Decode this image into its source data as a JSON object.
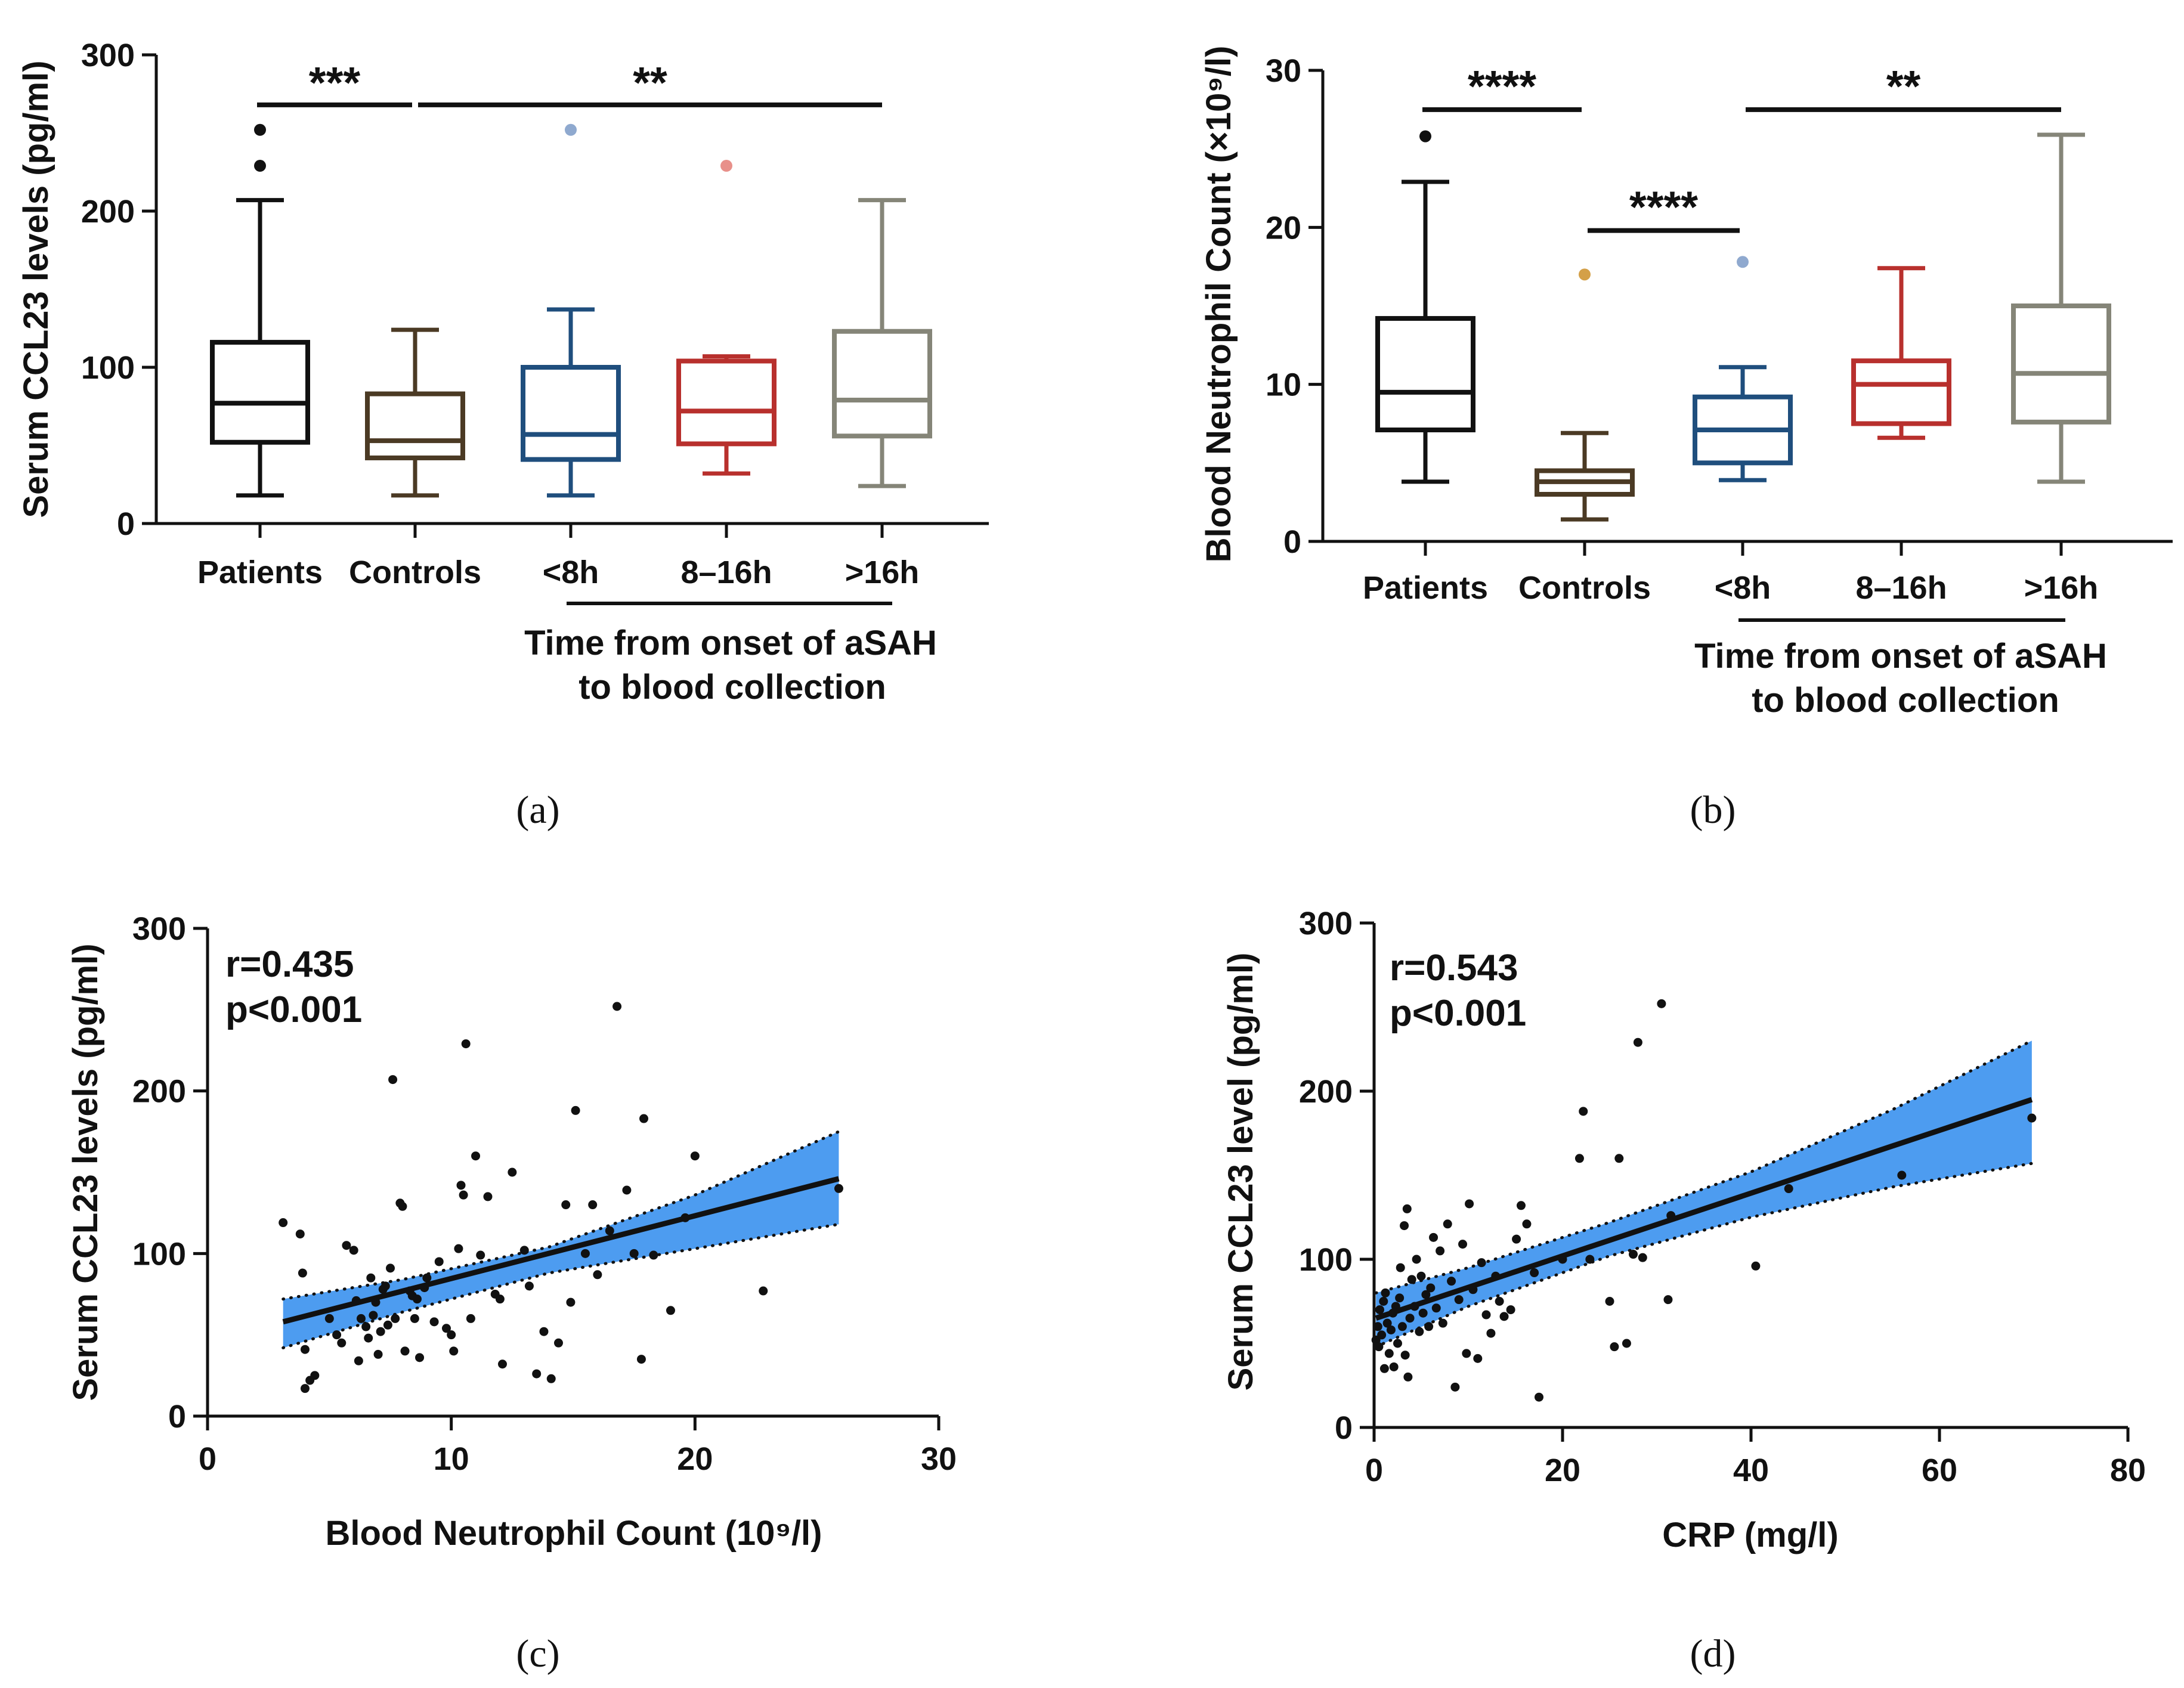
{
  "chart_data": [
    {
      "id": "a",
      "type": "box",
      "panel_label": "(a)",
      "ylabel": "Serum CCL23 levels (pg/ml)",
      "ylim": [
        0,
        300
      ],
      "yticks": [
        0,
        100,
        200,
        300
      ],
      "categories": [
        "Patients",
        "Controls",
        "<8h",
        "8–16h",
        ">16h"
      ],
      "group_caption": [
        "Time from onset of aSAH",
        "to blood collection"
      ],
      "colors": [
        "#111111",
        "#4b3a24",
        "#1f4e7d",
        "#b8302d",
        "#858578"
      ],
      "outlier_colors": [
        "#111111",
        "#111111",
        "#8fa9cf",
        "#e8908a",
        "#858578"
      ],
      "boxes": [
        {
          "min": 18,
          "q1": 52,
          "median": 77,
          "q3": 116,
          "max": 207,
          "outliers": [
            229,
            252
          ]
        },
        {
          "min": 18,
          "q1": 42,
          "median": 53,
          "q3": 83,
          "max": 124,
          "outliers": []
        },
        {
          "min": 18,
          "q1": 41,
          "median": 57,
          "q3": 100,
          "max": 137,
          "outliers": [
            252
          ]
        },
        {
          "min": 32,
          "q1": 51,
          "median": 72,
          "q3": 104,
          "max": 107,
          "outliers": [
            229
          ]
        },
        {
          "min": 24,
          "q1": 56,
          "median": 79,
          "q3": 123,
          "max": 207,
          "outliers": []
        }
      ],
      "significance": [
        {
          "from": 0,
          "to": 1,
          "label": "***",
          "y": 268
        },
        {
          "from": 1,
          "to": 4,
          "label": "**",
          "y": 268
        }
      ]
    },
    {
      "id": "b",
      "type": "box",
      "panel_label": "(b)",
      "ylabel": "Blood Neutrophil Count (×10⁹/l)",
      "ylim": [
        0,
        30
      ],
      "yticks": [
        0,
        10,
        20,
        30
      ],
      "categories": [
        "Patients",
        "Controls",
        "<8h",
        "8–16h",
        ">16h"
      ],
      "group_caption": [
        "Time from onset of aSAH",
        "to blood collection"
      ],
      "colors": [
        "#111111",
        "#4b3a24",
        "#1f4e7d",
        "#b8302d",
        "#858578"
      ],
      "outlier_colors": [
        "#111111",
        "#d4a048",
        "#8fa9cf",
        "#e8908a",
        "#858578"
      ],
      "boxes": [
        {
          "min": 3.8,
          "q1": 7.1,
          "median": 9.5,
          "q3": 14.2,
          "max": 22.9,
          "outliers": [
            25.8
          ]
        },
        {
          "min": 1.4,
          "q1": 3.0,
          "median": 3.8,
          "q3": 4.5,
          "max": 6.9,
          "outliers": [
            17.0
          ]
        },
        {
          "min": 3.9,
          "q1": 5.0,
          "median": 7.1,
          "q3": 9.2,
          "max": 11.1,
          "outliers": [
            17.8
          ]
        },
        {
          "min": 6.6,
          "q1": 7.5,
          "median": 10.0,
          "q3": 11.5,
          "max": 17.4,
          "outliers": []
        },
        {
          "min": 3.8,
          "q1": 7.6,
          "median": 10.7,
          "q3": 15.0,
          "max": 25.9,
          "outliers": []
        }
      ],
      "significance": [
        {
          "from": 0,
          "to": 1,
          "label": "****",
          "y": 27.5
        },
        {
          "from": 1,
          "to": 2,
          "label": "****",
          "y": 19.8
        },
        {
          "from": 2,
          "to": 4,
          "label": "**",
          "y": 27.5
        }
      ]
    },
    {
      "id": "c",
      "type": "scatter",
      "panel_label": "(c)",
      "title": "",
      "xlabel": "Blood Neutrophil Count (10⁹/l)",
      "ylabel": "Serum CCL23 levels (pg/ml)",
      "xlim": [
        0,
        30
      ],
      "ylim": [
        0,
        300
      ],
      "xticks": [
        0,
        10,
        20,
        30
      ],
      "yticks": [
        0,
        100,
        200,
        300
      ],
      "annotation": [
        "r=0.435",
        "p<0.001"
      ],
      "fit": {
        "x0": 3.1,
        "y0": 58,
        "x1": 25.9,
        "y1": 146
      },
      "band_upper": [
        [
          3.1,
          72
        ],
        [
          8.0,
          84
        ],
        [
          14.0,
          104
        ],
        [
          20.0,
          136
        ],
        [
          25.9,
          175
        ]
      ],
      "band_lower": [
        [
          3.1,
          42
        ],
        [
          8.0,
          64
        ],
        [
          14.0,
          88
        ],
        [
          20.0,
          103
        ],
        [
          25.9,
          118
        ]
      ],
      "band_color": "#4d9cf0",
      "points": [
        [
          3.1,
          119
        ],
        [
          3.8,
          112
        ],
        [
          3.9,
          88
        ],
        [
          4.0,
          17
        ],
        [
          4.2,
          22
        ],
        [
          4.4,
          25
        ],
        [
          4.0,
          41
        ],
        [
          5.0,
          60
        ],
        [
          5.3,
          50
        ],
        [
          5.5,
          45
        ],
        [
          5.7,
          105
        ],
        [
          6.0,
          102
        ],
        [
          6.1,
          71
        ],
        [
          6.2,
          34
        ],
        [
          6.3,
          60
        ],
        [
          6.5,
          55
        ],
        [
          6.6,
          48
        ],
        [
          6.7,
          85
        ],
        [
          6.8,
          62
        ],
        [
          6.9,
          70
        ],
        [
          7.0,
          38
        ],
        [
          7.1,
          52
        ],
        [
          7.2,
          78
        ],
        [
          7.3,
          80
        ],
        [
          7.4,
          56
        ],
        [
          7.5,
          91
        ],
        [
          7.6,
          207
        ],
        [
          7.7,
          60
        ],
        [
          7.9,
          131
        ],
        [
          8.0,
          129
        ],
        [
          8.1,
          40
        ],
        [
          8.3,
          77
        ],
        [
          8.4,
          74
        ],
        [
          8.5,
          60
        ],
        [
          8.6,
          72
        ],
        [
          8.7,
          36
        ],
        [
          8.9,
          79
        ],
        [
          9.0,
          85
        ],
        [
          9.3,
          58
        ],
        [
          9.5,
          95
        ],
        [
          9.8,
          54
        ],
        [
          10.0,
          50
        ],
        [
          10.1,
          40
        ],
        [
          10.3,
          103
        ],
        [
          10.4,
          142
        ],
        [
          10.5,
          136
        ],
        [
          10.6,
          229
        ],
        [
          10.8,
          60
        ],
        [
          11.0,
          160
        ],
        [
          11.2,
          99
        ],
        [
          11.5,
          135
        ],
        [
          11.8,
          75
        ],
        [
          12.0,
          72
        ],
        [
          12.1,
          32
        ],
        [
          12.5,
          150
        ],
        [
          13.0,
          102
        ],
        [
          13.2,
          80
        ],
        [
          13.5,
          26
        ],
        [
          13.8,
          52
        ],
        [
          14.1,
          23
        ],
        [
          14.4,
          45
        ],
        [
          14.7,
          130
        ],
        [
          14.9,
          70
        ],
        [
          15.1,
          188
        ],
        [
          15.5,
          100
        ],
        [
          15.8,
          130
        ],
        [
          16.0,
          87
        ],
        [
          16.5,
          114
        ],
        [
          16.8,
          252
        ],
        [
          17.2,
          139
        ],
        [
          17.5,
          100
        ],
        [
          17.8,
          35
        ],
        [
          17.9,
          183
        ],
        [
          18.3,
          99
        ],
        [
          19.0,
          65
        ],
        [
          19.6,
          122
        ],
        [
          20.0,
          160
        ],
        [
          22.8,
          77
        ],
        [
          25.9,
          140
        ]
      ]
    },
    {
      "id": "d",
      "type": "scatter",
      "panel_label": "(d)",
      "title": "",
      "xlabel": "CRP  (mg/l)",
      "ylabel": "Serum CCL23 level (pg/ml)",
      "xlim": [
        0,
        80
      ],
      "ylim": [
        0,
        300
      ],
      "xticks": [
        0,
        20,
        40,
        60,
        80
      ],
      "yticks": [
        0,
        100,
        200,
        300
      ],
      "annotation": [
        "r=0.543",
        "p<0.001"
      ],
      "fit": {
        "x0": 0.2,
        "y0": 65,
        "x1": 69.8,
        "y1": 195
      },
      "band_upper": [
        [
          0.2,
          80
        ],
        [
          10.0,
          95
        ],
        [
          25.0,
          122
        ],
        [
          40.0,
          152
        ],
        [
          55.0,
          189
        ],
        [
          69.8,
          230
        ]
      ],
      "band_lower": [
        [
          0.2,
          48
        ],
        [
          10.0,
          72
        ],
        [
          25.0,
          102
        ],
        [
          40.0,
          125
        ],
        [
          55.0,
          143
        ],
        [
          69.8,
          157
        ]
      ],
      "band_color": "#4d9cf0",
      "points": [
        [
          0.2,
          52
        ],
        [
          0.4,
          60
        ],
        [
          0.5,
          48
        ],
        [
          0.6,
          70
        ],
        [
          0.8,
          55
        ],
        [
          1.0,
          75
        ],
        [
          1.1,
          35
        ],
        [
          1.2,
          80
        ],
        [
          1.4,
          62
        ],
        [
          1.6,
          44
        ],
        [
          1.8,
          58
        ],
        [
          2.0,
          68
        ],
        [
          2.1,
          36
        ],
        [
          2.3,
          72
        ],
        [
          2.5,
          50
        ],
        [
          2.7,
          77
        ],
        [
          2.8,
          95
        ],
        [
          3.0,
          60
        ],
        [
          3.2,
          120
        ],
        [
          3.3,
          43
        ],
        [
          3.5,
          130
        ],
        [
          3.6,
          30
        ],
        [
          3.8,
          65
        ],
        [
          4.0,
          88
        ],
        [
          4.3,
          72
        ],
        [
          4.5,
          100
        ],
        [
          4.8,
          57
        ],
        [
          5.0,
          90
        ],
        [
          5.2,
          68
        ],
        [
          5.5,
          79
        ],
        [
          5.8,
          60
        ],
        [
          6.0,
          83
        ],
        [
          6.3,
          113
        ],
        [
          6.6,
          71
        ],
        [
          7.0,
          105
        ],
        [
          7.3,
          62
        ],
        [
          7.8,
          121
        ],
        [
          8.2,
          87
        ],
        [
          8.6,
          24
        ],
        [
          9.0,
          76
        ],
        [
          9.4,
          109
        ],
        [
          9.8,
          44
        ],
        [
          10.1,
          133
        ],
        [
          10.5,
          82
        ],
        [
          11.0,
          41
        ],
        [
          11.4,
          98
        ],
        [
          11.9,
          67
        ],
        [
          12.4,
          56
        ],
        [
          12.9,
          90
        ],
        [
          13.3,
          75
        ],
        [
          13.8,
          66
        ],
        [
          14.5,
          70
        ],
        [
          15.1,
          112
        ],
        [
          15.6,
          132
        ],
        [
          16.2,
          121
        ],
        [
          17.0,
          92
        ],
        [
          17.5,
          18
        ],
        [
          20.0,
          100
        ],
        [
          21.8,
          160
        ],
        [
          22.2,
          188
        ],
        [
          22.9,
          100
        ],
        [
          25.0,
          75
        ],
        [
          25.5,
          48
        ],
        [
          26.0,
          160
        ],
        [
          26.8,
          50
        ],
        [
          27.5,
          103
        ],
        [
          28.0,
          229
        ],
        [
          28.5,
          101
        ],
        [
          30.5,
          252
        ],
        [
          31.2,
          76
        ],
        [
          31.5,
          126
        ],
        [
          40.5,
          96
        ],
        [
          44.0,
          142
        ],
        [
          56.0,
          150
        ],
        [
          69.8,
          184
        ]
      ]
    }
  ]
}
